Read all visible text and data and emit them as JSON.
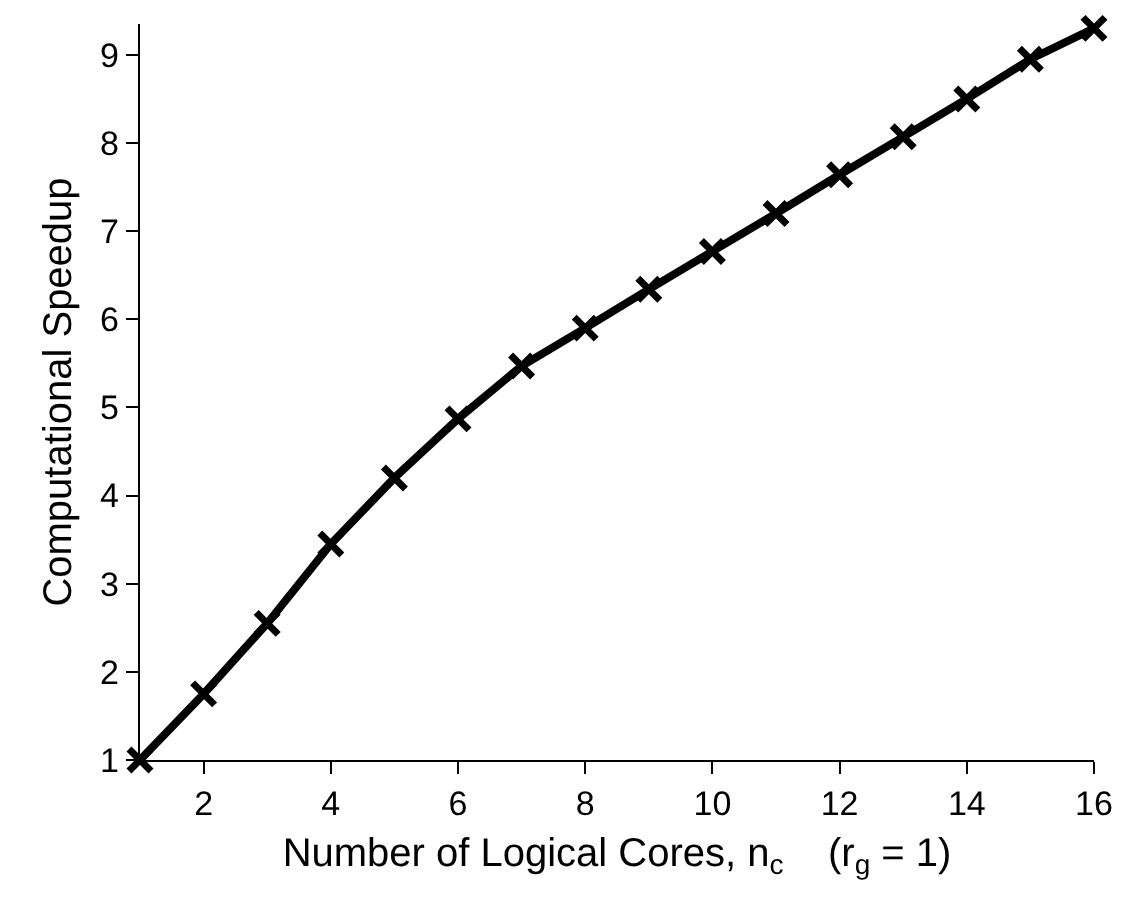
{
  "chart_data": {
    "type": "line",
    "xlabel": "Number of Logical Cores, n$_{c}$    (r$_{g}$ = 1)",
    "ylabel": "Computational Speedup",
    "x": [
      1,
      2,
      3,
      4,
      5,
      6,
      7,
      8,
      9,
      10,
      11,
      12,
      13,
      14,
      15,
      16
    ],
    "series": [
      {
        "color": "#000000",
        "values": [
          1,
          1.75,
          2.55,
          3.45,
          4.2,
          4.87,
          5.47,
          5.9,
          6.34,
          6.77,
          7.2,
          7.64,
          8.07,
          8.5,
          8.95,
          9.3
        ]
      }
    ],
    "xlim": [
      1,
      16
    ],
    "xticks": [
      2,
      4,
      6,
      8,
      10,
      12,
      14,
      16
    ],
    "ylim": [
      1,
      9.35
    ],
    "yticks": [
      1,
      2,
      3,
      4,
      5,
      6,
      7,
      8,
      9
    ],
    "marker": "cross",
    "line_style": "solid"
  }
}
